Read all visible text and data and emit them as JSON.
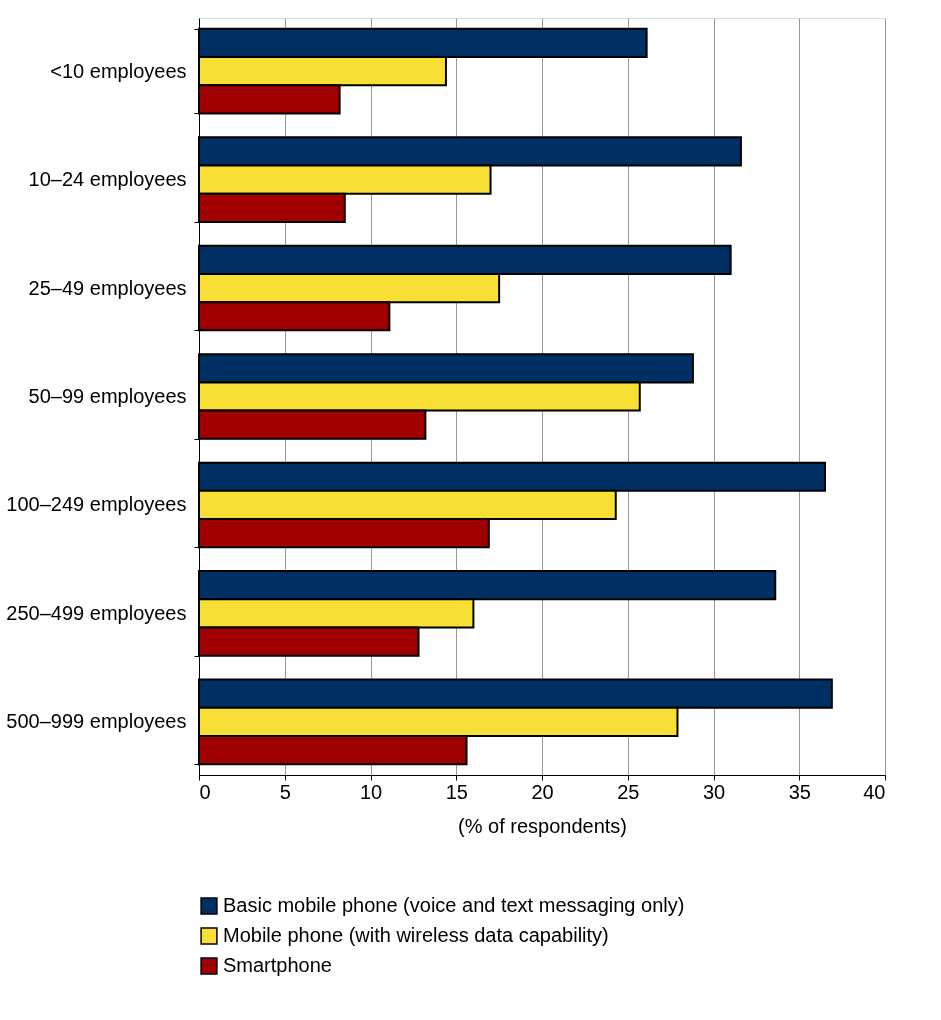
{
  "chart_data": {
    "type": "bar",
    "orientation": "horizontal",
    "xlabel": "(% of respondents)",
    "categories": [
      "<10 employees",
      "10–24 employees",
      "25–49 employees",
      "50–99 employees",
      "100–249 employees",
      "250–499 employees",
      "500–999 employees"
    ],
    "series": [
      {
        "name": "Basic mobile phone (voice and text messaging only)",
        "color": "#002f63",
        "values": [
          26.1,
          31.6,
          31.0,
          28.8,
          36.5,
          33.6,
          36.9
        ]
      },
      {
        "name": "Mobile phone (with wireless data capability)",
        "color": "#f7df35",
        "values": [
          14.4,
          17.0,
          17.5,
          25.7,
          24.3,
          16.0,
          27.9
        ]
      },
      {
        "name": "Smartphone",
        "color": "#a00000",
        "values": [
          8.2,
          8.5,
          11.1,
          13.2,
          16.9,
          12.8,
          15.6
        ]
      }
    ],
    "xlim": [
      0,
      40
    ],
    "xticks": [
      0,
      5,
      10,
      15,
      20,
      25,
      30,
      35,
      40
    ],
    "grid": "x",
    "legend": "bottom"
  }
}
